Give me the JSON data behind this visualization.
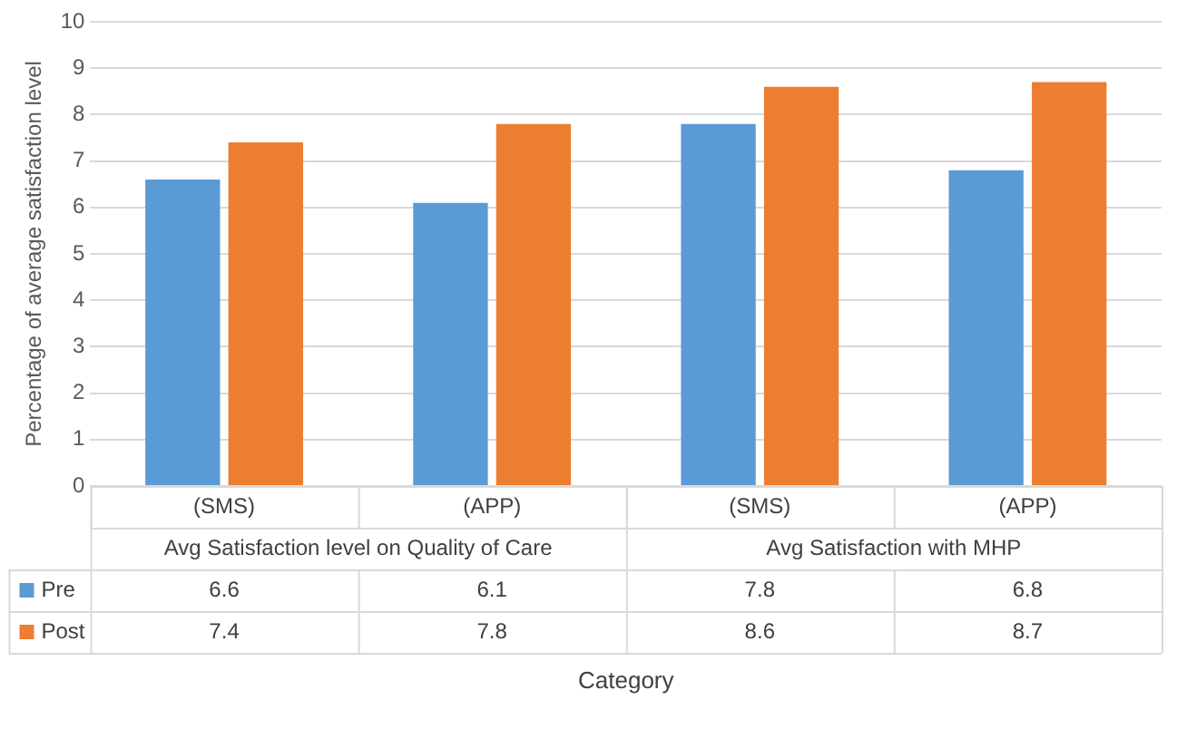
{
  "chart_data": {
    "type": "bar",
    "ylabel": "Percentage of average satisfaction level",
    "categories": [
      "(SMS)",
      "(APP)",
      "(SMS)",
      "(APP)"
    ],
    "annotations": [
      "Avg Satisfaction level on Quality of Care",
      "Avg Satisfaction with MHP",
      "Category"
    ],
    "series": [
      {
        "name": "Pre",
        "color": "#5b9bd5",
        "values": [
          6.6,
          6.1,
          7.8,
          6.8
        ]
      },
      {
        "name": "Post",
        "color": "#ed7d31",
        "values": [
          7.4,
          7.8,
          8.6,
          8.7
        ]
      }
    ],
    "ylim": [
      0,
      10
    ],
    "yticks": [
      0,
      1,
      2,
      3,
      4,
      5,
      6,
      7,
      8,
      9,
      10
    ],
    "grid": "y",
    "legend": "bottom",
    "data_labels": true
  }
}
